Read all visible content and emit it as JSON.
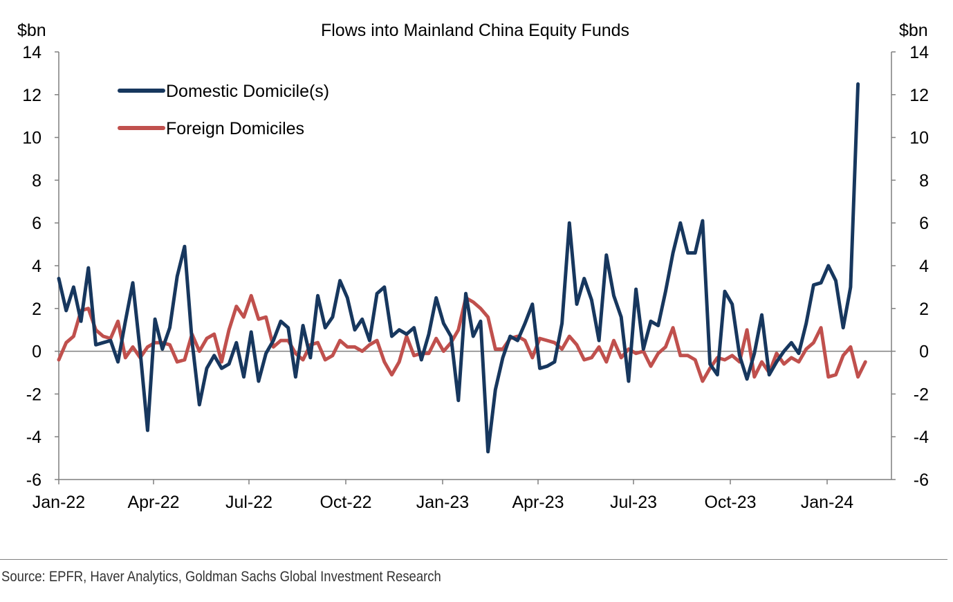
{
  "chart_data": {
    "type": "line",
    "title": "Flows into Mainland China Equity Funds",
    "ylabel_left": "$bn",
    "ylabel_right": "$bn",
    "ylim": [
      -6,
      14
    ],
    "yticks": [
      14,
      12,
      10,
      8,
      6,
      4,
      2,
      0,
      -2,
      -4,
      -6
    ],
    "x_tick_labels": [
      "Jan-22",
      "Apr-22",
      "Jul-22",
      "Oct-22",
      "Jan-23",
      "Apr-23",
      "Jul-23",
      "Oct-23",
      "Jan-24"
    ],
    "x_unit": "week",
    "legend_position": "top-left",
    "series": [
      {
        "name": "Domestic Domicile(s)",
        "color": "#17375e",
        "values": [
          3.4,
          1.9,
          3.0,
          1.4,
          3.9,
          0.3,
          0.4,
          0.5,
          -0.5,
          1.4,
          3.2,
          0.0,
          -3.7,
          1.5,
          0.1,
          1.1,
          3.5,
          4.9,
          0.5,
          -2.5,
          -0.8,
          -0.2,
          -0.8,
          -0.6,
          0.4,
          -1.2,
          0.9,
          -1.4,
          -0.1,
          0.5,
          1.4,
          1.1,
          -1.2,
          1.2,
          -0.3,
          2.6,
          1.1,
          1.6,
          3.3,
          2.5,
          1.0,
          1.5,
          0.5,
          2.7,
          3.0,
          0.7,
          1.0,
          0.8,
          1.1,
          -0.4,
          0.8,
          2.5,
          1.3,
          0.7,
          -2.3,
          2.7,
          0.7,
          1.4,
          -4.7,
          -1.8,
          -0.3,
          0.7,
          0.5,
          1.3,
          2.2,
          -0.8,
          -0.7,
          -0.5,
          1.3,
          6.0,
          2.2,
          3.4,
          2.4,
          0.5,
          4.5,
          2.6,
          1.6,
          -1.4,
          2.9,
          0.1,
          1.4,
          1.2,
          2.8,
          4.6,
          6.0,
          4.6,
          4.6,
          6.1,
          -0.6,
          -1.1,
          2.8,
          2.2,
          -0.2,
          -1.3,
          -0.1,
          1.7,
          -1.1,
          -0.5,
          0.0,
          0.4,
          -0.1,
          1.3,
          3.1,
          3.2,
          4.0,
          3.3,
          1.1,
          3.0,
          12.5
        ]
      },
      {
        "name": "Foreign Domiciles",
        "color": "#c0504d",
        "values": [
          -0.4,
          0.4,
          0.7,
          1.9,
          2.0,
          1.0,
          0.7,
          0.6,
          1.4,
          -0.3,
          0.2,
          -0.3,
          0.2,
          0.4,
          0.4,
          0.3,
          -0.5,
          -0.4,
          0.8,
          0.0,
          0.6,
          0.8,
          -0.5,
          1.0,
          2.1,
          1.6,
          2.6,
          1.5,
          1.6,
          0.2,
          0.5,
          0.5,
          -0.1,
          -0.4,
          0.3,
          0.4,
          -0.4,
          -0.2,
          0.5,
          0.2,
          0.2,
          0.0,
          0.3,
          0.5,
          -0.5,
          -1.1,
          -0.5,
          0.7,
          -0.2,
          -0.1,
          -0.1,
          0.6,
          0.0,
          0.4,
          1.0,
          2.5,
          2.3,
          2.0,
          1.6,
          0.1,
          0.1,
          0.6,
          0.7,
          0.5,
          -0.3,
          0.6,
          0.5,
          0.4,
          0.1,
          0.7,
          0.3,
          -0.4,
          -0.3,
          0.2,
          -0.5,
          0.5,
          -0.3,
          0.1,
          -0.1,
          0.0,
          -0.7,
          -0.1,
          0.2,
          1.1,
          -0.2,
          -0.2,
          -0.4,
          -1.4,
          -0.8,
          -0.3,
          -0.4,
          -0.2,
          -0.5,
          1.0,
          -1.2,
          -0.5,
          -1.0,
          -0.1,
          -0.6,
          -0.3,
          -0.5,
          0.1,
          0.4,
          1.1,
          -1.2,
          -1.1,
          -0.2,
          0.2,
          -1.2,
          -0.5
        ]
      }
    ]
  },
  "source": "Source: EPFR, Haver Analytics, Goldman Sachs Global Investment Research"
}
